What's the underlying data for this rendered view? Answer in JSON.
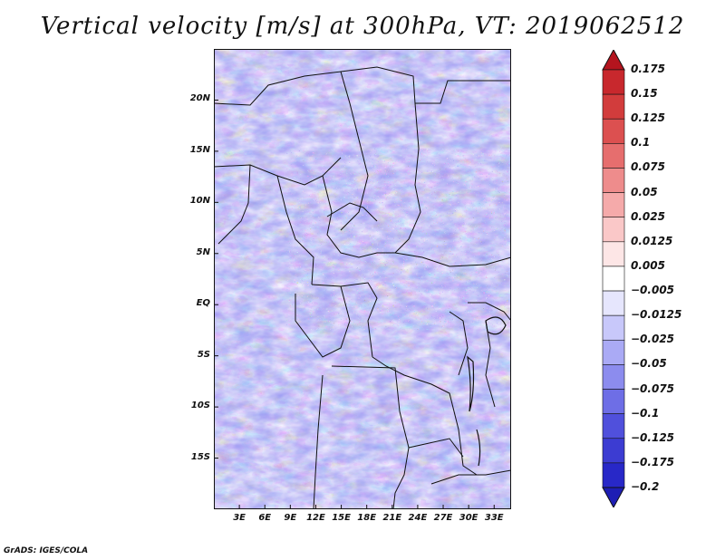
{
  "title": "Vertical velocity [m/s] at 300hPa, VT: 2019062512",
  "footer": "GrADS: IGES/COLA",
  "map": {
    "lat_ticks": [
      {
        "label": "20N",
        "value": 20
      },
      {
        "label": "15N",
        "value": 15
      },
      {
        "label": "10N",
        "value": 10
      },
      {
        "label": "5N",
        "value": 5
      },
      {
        "label": "EQ",
        "value": 0
      },
      {
        "label": "5S",
        "value": -5
      },
      {
        "label": "10S",
        "value": -10
      },
      {
        "label": "15S",
        "value": -15
      }
    ],
    "lon_ticks": [
      {
        "label": "3E",
        "value": 3
      },
      {
        "label": "6E",
        "value": 6
      },
      {
        "label": "9E",
        "value": 9
      },
      {
        "label": "12E",
        "value": 12
      },
      {
        "label": "15E",
        "value": 15
      },
      {
        "label": "18E",
        "value": 18
      },
      {
        "label": "21E",
        "value": 21
      },
      {
        "label": "24E",
        "value": 24
      },
      {
        "label": "27E",
        "value": 27
      },
      {
        "label": "30E",
        "value": 30
      },
      {
        "label": "33E",
        "value": 33
      }
    ],
    "lat_range": [
      -20,
      25
    ],
    "lon_range": [
      0,
      35
    ],
    "grid": false
  },
  "colorbar": {
    "labels": [
      "0.175",
      "0.15",
      "0.125",
      "0.1",
      "0.075",
      "0.05",
      "0.025",
      "0.0125",
      "0.005",
      "−0.005",
      "−0.0125",
      "−0.025",
      "−0.05",
      "−0.075",
      "−0.1",
      "−0.125",
      "−0.175",
      "−0.2"
    ],
    "colors": [
      "#b4141e",
      "#c8282d",
      "#d23c3c",
      "#dc5050",
      "#e66e6e",
      "#ee8c8c",
      "#f5aaaa",
      "#fac8c8",
      "#fde6e6",
      "#ffffff",
      "#e6e6fd",
      "#c8c8fa",
      "#aaaaf5",
      "#8c8cee",
      "#6e6ee6",
      "#5050dc",
      "#3c3cd2",
      "#2828c8",
      "#1e1eb4"
    ]
  }
}
